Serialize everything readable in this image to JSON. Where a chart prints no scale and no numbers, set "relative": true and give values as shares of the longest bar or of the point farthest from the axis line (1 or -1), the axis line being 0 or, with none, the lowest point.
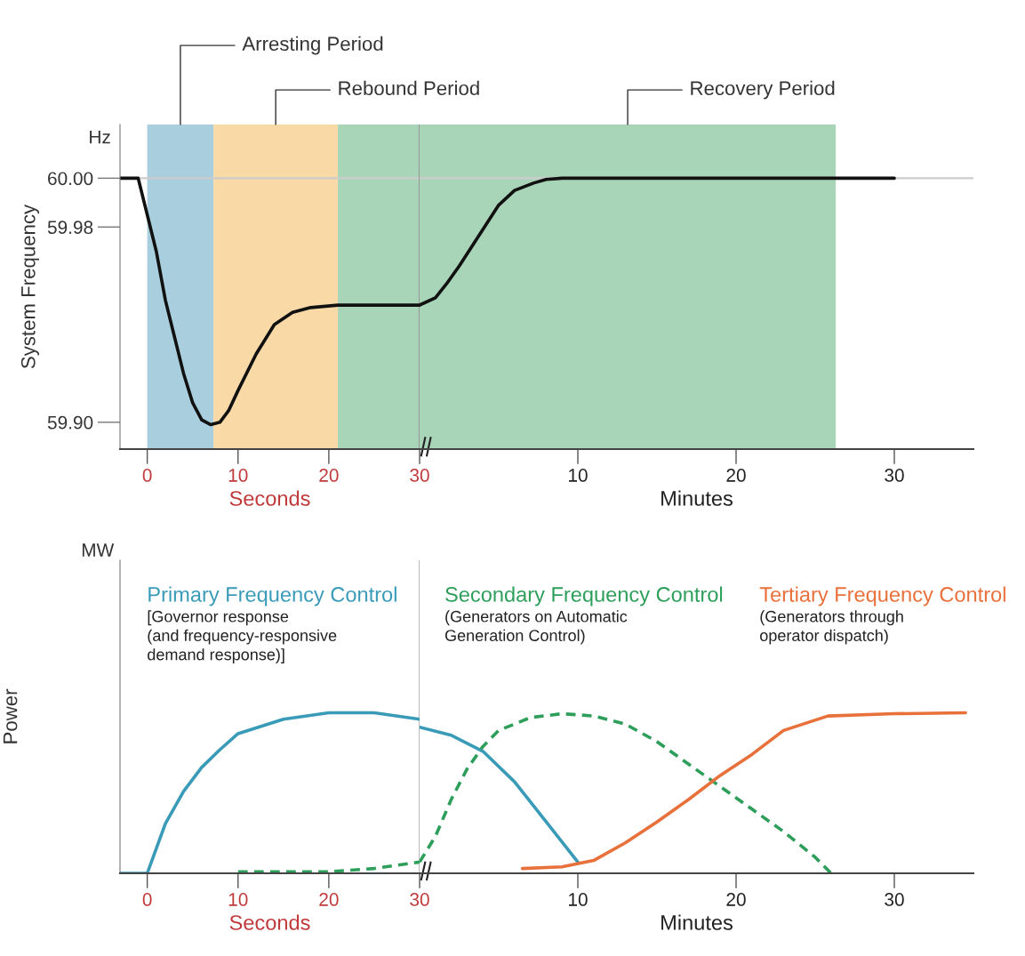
{
  "chart_data": [
    {
      "type": "line",
      "xlabel": "Seconds",
      "ylabel": "System Frequency",
      "annotations": [
        "Hz"
      ],
      "xlim": [
        -3,
        30
      ],
      "xticks": [
        0,
        10,
        20,
        30
      ],
      "ylim": [
        59.889,
        60.022
      ],
      "yticks": [
        {
          "value": 60.0,
          "label": "60.00"
        },
        {
          "value": 59.98,
          "label": "59.98"
        },
        {
          "value": 59.9,
          "label": "59.90"
        }
      ],
      "series": [
        {
          "color": "#111111",
          "line_style": "solid",
          "x": [
            -3,
            -1,
            0,
            1,
            2,
            3,
            4,
            5,
            6,
            7,
            8,
            9,
            10,
            12,
            14,
            16,
            18,
            21,
            25,
            30
          ],
          "values": [
            60.0,
            60.0,
            59.985,
            59.97,
            59.95,
            59.935,
            59.92,
            59.908,
            59.901,
            59.899,
            59.9,
            59.905,
            59.913,
            59.928,
            59.94,
            59.945,
            59.947,
            59.948,
            59.948,
            59.948
          ]
        }
      ],
      "bands": [
        {
          "axis": "x",
          "from": 0,
          "to": 7.3,
          "label": "Arresting Period",
          "color": "#a9cfdf"
        },
        {
          "axis": "x",
          "from": 7.3,
          "to": 21,
          "label": "Rebound Period",
          "color": "#f9d9a6"
        },
        {
          "axis": "x",
          "from": 21,
          "to": 30,
          "color": "#a8d4b8"
        }
      ],
      "ref_lines": [
        {
          "axis": "y",
          "value": 60.0,
          "color": "#cccccc"
        },
        {
          "axis": "x",
          "value": 30,
          "color": "#999999"
        }
      ],
      "grid": false,
      "marker": "none"
    },
    {
      "type": "line",
      "xlabel": "Minutes",
      "tick_labels": "x",
      "xlim": [
        0,
        35
      ],
      "xticks": [
        10,
        20,
        30
      ],
      "ylim": [
        59.889,
        60.022
      ],
      "series": [
        {
          "color": "#111111",
          "line_style": "solid",
          "x": [
            0,
            1,
            1.7,
            2.5,
            3.5,
            4.5,
            5,
            6,
            7.2,
            8,
            9,
            12,
            20,
            30
          ],
          "values": [
            59.948,
            59.951,
            59.9567,
            59.964,
            59.974,
            59.984,
            59.989,
            59.995,
            59.998,
            59.9995,
            60.0,
            60.0,
            60.0,
            60.0
          ]
        }
      ],
      "bands": [
        {
          "axis": "x",
          "from": 0,
          "to": 26.3,
          "label": "Recovery Period",
          "color": "#a8d4b8"
        }
      ],
      "ref_lines": [
        {
          "axis": "y",
          "value": 60.0,
          "color": "#cccccc"
        }
      ],
      "grid": false,
      "marker": "none"
    },
    {
      "type": "line",
      "xlabel": "Seconds",
      "ylabel": "Power",
      "relative": true,
      "tick_labels": "x",
      "annotations": [
        "MW",
        "[Governor response\n(and frequency-responsive\ndemand response)]"
      ],
      "xlim": [
        -3,
        30
      ],
      "xticks": [
        0,
        10,
        20,
        30
      ],
      "series": [
        {
          "name": "Primary Frequency Control",
          "color": "#3a9bb8",
          "line_style": "solid",
          "x": [
            -3,
            0,
            2,
            4,
            6,
            8,
            10,
            15,
            20,
            25,
            30
          ],
          "values": [
            0,
            0,
            0.31,
            0.51,
            0.66,
            0.77,
            0.87,
            0.96,
            1,
            1,
            0.96
          ]
        },
        {
          "color": "#2e9e5b",
          "line_style": "dashed",
          "x": [
            10,
            20,
            25,
            30
          ],
          "values": [
            0.01,
            0.01,
            0.03,
            0.07
          ]
        }
      ],
      "ref_lines": [
        {
          "axis": "x",
          "value": 30,
          "color": "#bbbbbb"
        }
      ],
      "grid": false,
      "marker": "none"
    },
    {
      "type": "line",
      "xlabel": "Minutes",
      "relative": true,
      "tick_labels": "x",
      "annotations": [
        "(Generators on Automatic\nGeneration Control)",
        "(Generators through\noperator dispatch)"
      ],
      "xlim": [
        0,
        35
      ],
      "xticks": [
        10,
        20,
        30
      ],
      "series": [
        {
          "color": "#3a9bb8",
          "line_style": "solid",
          "x": [
            0,
            2,
            4,
            6,
            8,
            10
          ],
          "values": [
            0.91,
            0.86,
            0.76,
            0.57,
            0.32,
            0.07
          ]
        },
        {
          "name": "Secondary Frequency Control",
          "color": "#2e9e5b",
          "line_style": "dashed",
          "x": [
            0,
            1,
            2,
            3,
            4,
            5,
            7,
            9,
            11,
            13,
            15,
            17,
            19,
            21,
            23,
            25,
            26
          ],
          "values": [
            0.07,
            0.23,
            0.46,
            0.65,
            0.79,
            0.89,
            0.97,
            0.994,
            0.98,
            0.93,
            0.82,
            0.68,
            0.54,
            0.4,
            0.26,
            0.1,
            0
          ]
        },
        {
          "name": "Tertiary Frequency Control",
          "color": "#e8703a",
          "line_style": "solid",
          "x": [
            6.5,
            9,
            11,
            13,
            15,
            17,
            19,
            21,
            23,
            25.8,
            30,
            34.5
          ],
          "values": [
            0.03,
            0.04,
            0.08,
            0.19,
            0.32,
            0.46,
            0.61,
            0.74,
            0.89,
            0.98,
            0.994,
            1
          ]
        }
      ],
      "grid": false,
      "marker": "none"
    }
  ]
}
